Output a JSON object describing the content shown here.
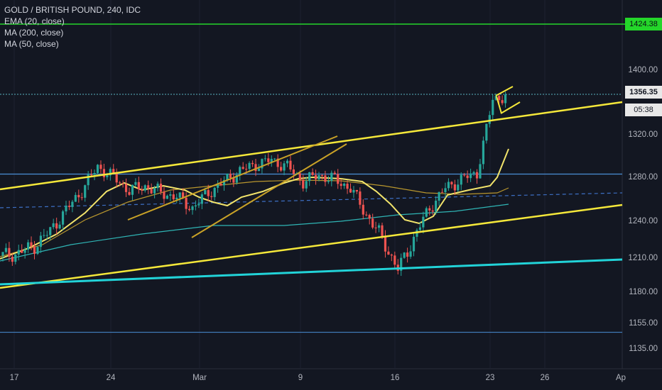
{
  "legend": {
    "title": "GOLD / BRITISH POUND, 240, IDC",
    "ema20": "EMA (20, close)",
    "ma200": "MA (200, close)",
    "ma50": "MA (50, close)"
  },
  "price_tags": {
    "top_line": "1424.38",
    "last_price": "1356.35",
    "countdown": "05:38"
  },
  "colors": {
    "background": "#131722",
    "up": "#26a69a",
    "down": "#ef5350",
    "trendline": "#f5e83a",
    "channel": "#c9a227",
    "support_cyan": "#22d3d8",
    "hline_blue": "#4a8fd8",
    "ema20": "#f2e46b",
    "ma50": "#b8962e",
    "ma200": "#2fb5b5",
    "level_green": "#24d62a"
  },
  "chart_data": {
    "type": "candlestick",
    "title": "GOLD / BRITISH POUND, 240, IDC",
    "ylim": [
      1120,
      1440
    ],
    "y_ticks": [
      {
        "label": "1400.00",
        "value": 1400
      },
      {
        "label": "1320.00",
        "value": 1320
      },
      {
        "label": "1280.00",
        "value": 1280
      },
      {
        "label": "1240.00",
        "value": 1240
      },
      {
        "label": "1210.00",
        "value": 1210
      },
      {
        "label": "1180.00",
        "value": 1180
      },
      {
        "label": "1155.00",
        "value": 1155
      },
      {
        "label": "1135.00",
        "value": 1135
      }
    ],
    "x_ticks": [
      "17",
      "24",
      "Mar",
      "9",
      "16",
      "23",
      "26",
      "Ap"
    ],
    "horizontal_levels": [
      1424.38,
      1356.35,
      1283,
      1148
    ],
    "close_series_approx": [
      1212,
      1214,
      1220,
      1232,
      1250,
      1268,
      1290,
      1280,
      1268,
      1272,
      1266,
      1262,
      1252,
      1266,
      1276,
      1286,
      1292,
      1296,
      1290,
      1276,
      1282,
      1278,
      1270,
      1246,
      1226,
      1200,
      1226,
      1252,
      1270,
      1278,
      1284,
      1352,
      1356
    ]
  }
}
